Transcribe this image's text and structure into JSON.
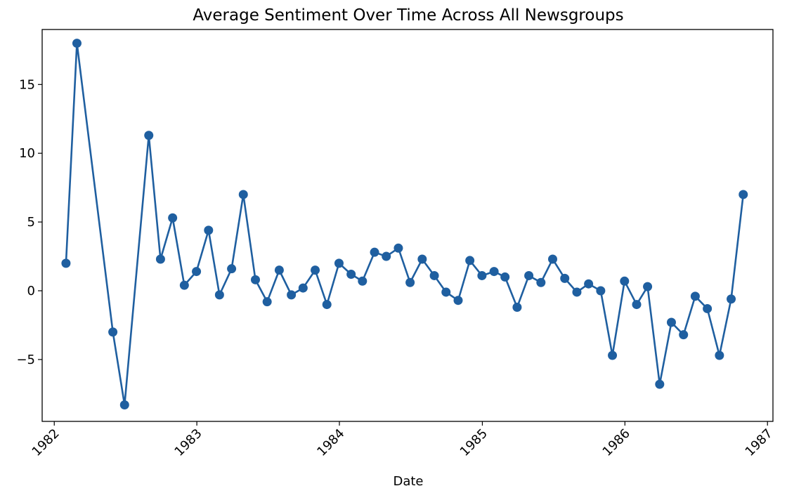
{
  "chart_data": {
    "type": "line",
    "title": "Average Sentiment Over Time Across All Newsgroups",
    "xlabel": "Date",
    "ylabel": "",
    "x_type": "date",
    "xlim": [
      "1981-12-01",
      "1987-01-15"
    ],
    "ylim": [
      -9.5,
      19.0
    ],
    "x_ticks": [
      {
        "value": "1982-01-01",
        "label": "1982"
      },
      {
        "value": "1983-01-01",
        "label": "1983"
      },
      {
        "value": "1984-01-01",
        "label": "1984"
      },
      {
        "value": "1985-01-01",
        "label": "1985"
      },
      {
        "value": "1986-01-01",
        "label": "1986"
      },
      {
        "value": "1987-01-01",
        "label": "1987"
      }
    ],
    "y_ticks": [
      {
        "value": -5,
        "label": "−5"
      },
      {
        "value": 0,
        "label": "0"
      },
      {
        "value": 5,
        "label": "5"
      },
      {
        "value": 10,
        "label": "10"
      },
      {
        "value": 15,
        "label": "15"
      }
    ],
    "grid": false,
    "legend": "none",
    "color": "#1f5fa0",
    "series": [
      {
        "x": [
          "1982-01-31",
          "1982-02-28",
          "1982-05-31",
          "1982-06-30",
          "1982-08-31",
          "1982-09-30",
          "1982-10-31",
          "1982-11-30",
          "1982-12-31",
          "1983-01-31",
          "1983-02-28",
          "1983-03-31",
          "1983-04-30",
          "1983-05-31",
          "1983-06-30",
          "1983-07-31",
          "1983-08-31",
          "1983-09-30",
          "1983-10-31",
          "1983-11-30",
          "1983-12-31",
          "1984-01-31",
          "1984-02-29",
          "1984-03-31",
          "1984-04-30",
          "1984-05-31",
          "1984-06-30",
          "1984-07-31",
          "1984-08-31",
          "1984-09-30",
          "1984-10-31",
          "1984-11-30",
          "1984-12-31",
          "1985-01-31",
          "1985-02-28",
          "1985-03-31",
          "1985-04-30",
          "1985-05-31",
          "1985-06-30",
          "1985-07-31",
          "1985-08-31",
          "1985-09-30",
          "1985-10-31",
          "1985-11-30",
          "1985-12-31",
          "1986-01-31",
          "1986-02-28",
          "1986-03-31",
          "1986-04-30",
          "1986-05-31",
          "1986-06-30",
          "1986-07-31",
          "1986-08-31",
          "1986-09-30",
          "1986-10-31"
        ],
        "values": [
          2.0,
          18.0,
          -3.0,
          -8.3,
          11.3,
          2.3,
          5.3,
          0.4,
          1.4,
          4.4,
          -0.3,
          1.6,
          7.0,
          0.8,
          -0.8,
          1.5,
          -0.3,
          0.2,
          1.5,
          -1.0,
          2.0,
          1.2,
          0.7,
          2.8,
          2.5,
          3.1,
          0.6,
          2.3,
          1.1,
          -0.1,
          -0.7,
          2.2,
          1.1,
          1.4,
          1.0,
          -1.2,
          1.1,
          0.6,
          2.3,
          0.9,
          -0.1,
          0.5,
          0.0,
          -4.7,
          0.7,
          -1.0,
          0.3,
          -6.8,
          -2.3,
          -3.2,
          -0.4,
          -1.3,
          -4.7,
          -0.6,
          7.0
        ]
      }
    ]
  }
}
